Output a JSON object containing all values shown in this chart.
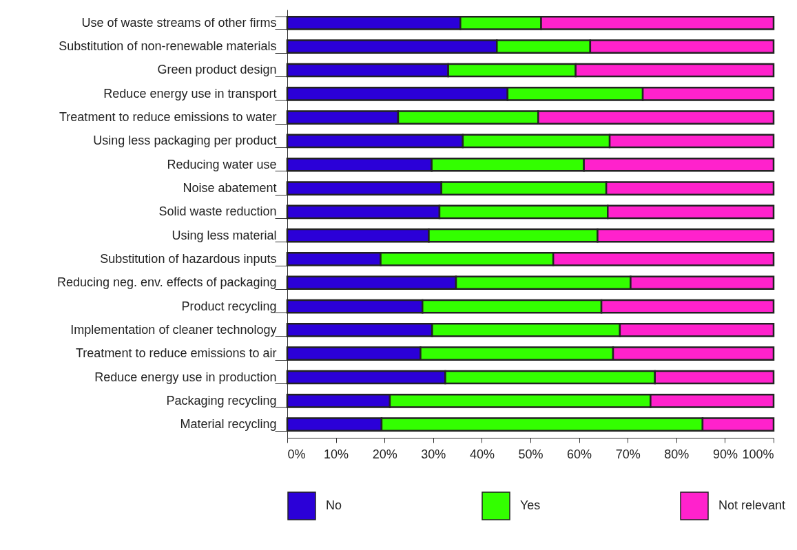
{
  "chart_data": {
    "type": "bar",
    "orientation": "horizontal",
    "stacked": true,
    "legend": "bottom",
    "grid": false,
    "categories": [
      "Use of waste streams of other firms",
      "Substitution of non-renewable materials",
      "Green product design",
      "Reduce energy use in transport",
      "Treatment to reduce emissions to water",
      "Using less packaging per product",
      "Reducing water use",
      "Noise abatement",
      "Solid waste reduction",
      "Using less material",
      "Substitution of hazardous inputs",
      "Reducing neg. env. effects of packaging",
      "Product recycling",
      "Implementation of cleaner technology",
      "Treatment to reduce emissions to air",
      "Reduce energy use in production",
      "Packaging recycling",
      "Material recycling"
    ],
    "series": [
      {
        "name": "No",
        "color": "#2b00d8",
        "values": [
          35.6,
          43.1,
          33.1,
          45.3,
          22.8,
          36.1,
          29.7,
          31.7,
          31.3,
          29.1,
          19.2,
          34.7,
          27.8,
          29.8,
          27.4,
          32.5,
          21.1,
          19.4
        ]
      },
      {
        "name": "Yes",
        "color": "#33ff00",
        "values": [
          16.6,
          19.2,
          26.2,
          27.8,
          28.8,
          30.2,
          31.3,
          33.9,
          34.6,
          34.7,
          35.5,
          35.9,
          36.8,
          38.6,
          39.6,
          43.1,
          53.6,
          66.0
        ]
      },
      {
        "name": "Not relevant",
        "color": "#ff22cc",
        "values": [
          47.8,
          37.7,
          40.7,
          26.9,
          48.4,
          33.7,
          39.0,
          34.4,
          34.1,
          36.2,
          45.3,
          29.4,
          35.4,
          31.6,
          33.0,
          24.4,
          25.3,
          14.6
        ]
      }
    ],
    "xlim": [
      0,
      100
    ],
    "xticks": [
      {
        "value": 0,
        "label": "0%"
      },
      {
        "value": 10,
        "label": "10%"
      },
      {
        "value": 20,
        "label": "20%"
      },
      {
        "value": 30,
        "label": "30%"
      },
      {
        "value": 40,
        "label": "40%"
      },
      {
        "value": 50,
        "label": "50%"
      },
      {
        "value": 60,
        "label": "60%"
      },
      {
        "value": 70,
        "label": "70%"
      },
      {
        "value": 80,
        "label": "80%"
      },
      {
        "value": 90,
        "label": "90%"
      },
      {
        "value": 100,
        "label": "100%"
      }
    ]
  }
}
